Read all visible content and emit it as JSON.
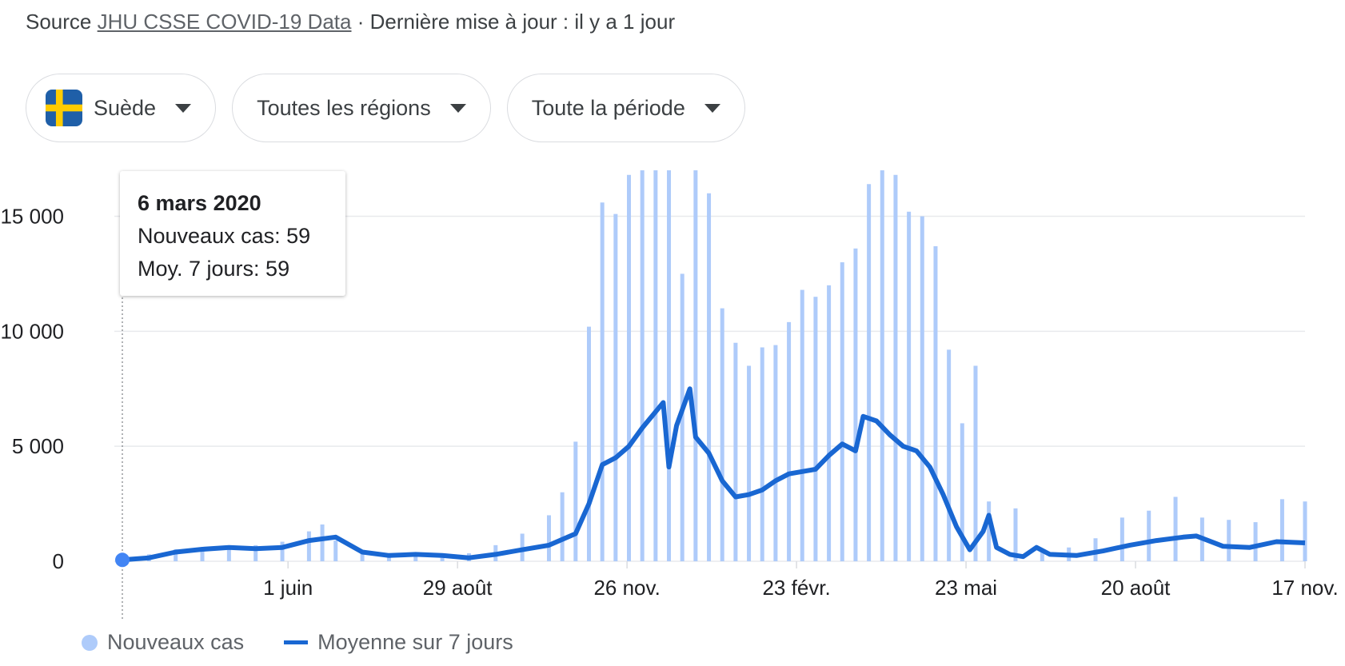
{
  "source": {
    "prefix": "Source",
    "link_text": "JHU CSSE COVID-19 Data",
    "suffix": "· Dernière mise à jour : il y a 1 jour"
  },
  "filters": {
    "country": "Suède",
    "region": "Toutes les régions",
    "period": "Toute la période",
    "flag_icon": "sweden-flag-icon"
  },
  "tooltip": {
    "date": "6 mars 2020",
    "new_cases_line": "Nouveaux cas: 59",
    "avg_line": "Moy. 7 jours: 59"
  },
  "legend": {
    "bars": "Nouveaux cas",
    "line": "Moyenne sur 7 jours"
  },
  "colors": {
    "bar": "#aecbfa",
    "line": "#1967d2",
    "grid": "#e8eaed",
    "marker": "#4285f4"
  },
  "chart_data": {
    "type": "bar",
    "x_range": [
      "2020-03-06",
      "2021-11-17"
    ],
    "ylim": [
      0,
      17000
    ],
    "y_ticks": [
      0,
      5000,
      10000,
      15000
    ],
    "y_tick_labels": [
      "0",
      "5 000",
      "10 000",
      "15 000"
    ],
    "x_ticks": [
      {
        "date": "2020-06-01",
        "label": "1 juin"
      },
      {
        "date": "2020-08-29",
        "label": "29 août"
      },
      {
        "date": "2020-11-26",
        "label": "26 nov."
      },
      {
        "date": "2021-02-23",
        "label": "23 févr."
      },
      {
        "date": "2021-05-23",
        "label": "23 mai"
      },
      {
        "date": "2021-08-20",
        "label": "20 août"
      },
      {
        "date": "2021-11-17",
        "label": "17 nov."
      }
    ],
    "grid": true,
    "legend_position": "bottom-left",
    "highlight": {
      "date": "2020-03-06",
      "new_cases": 59,
      "avg_7d": 59
    },
    "series": [
      {
        "name": "Nouveaux cas",
        "type": "bar",
        "points": [
          [
            "2020-03-06",
            59
          ],
          [
            "2020-03-20",
            300
          ],
          [
            "2020-04-03",
            520
          ],
          [
            "2020-04-17",
            600
          ],
          [
            "2020-05-01",
            650
          ],
          [
            "2020-05-15",
            700
          ],
          [
            "2020-05-29",
            850
          ],
          [
            "2020-06-12",
            1300
          ],
          [
            "2020-06-19",
            1600
          ],
          [
            "2020-06-26",
            900
          ],
          [
            "2020-07-10",
            350
          ],
          [
            "2020-07-24",
            250
          ],
          [
            "2020-08-07",
            300
          ],
          [
            "2020-08-21",
            280
          ],
          [
            "2020-09-04",
            350
          ],
          [
            "2020-09-18",
            700
          ],
          [
            "2020-10-02",
            1200
          ],
          [
            "2020-10-16",
            2000
          ],
          [
            "2020-10-23",
            3000
          ],
          [
            "2020-10-30",
            5200
          ],
          [
            "2020-11-06",
            10200
          ],
          [
            "2020-11-13",
            15600
          ],
          [
            "2020-11-20",
            15100
          ],
          [
            "2020-11-27",
            16800
          ],
          [
            "2020-12-04",
            17000
          ],
          [
            "2020-12-11",
            17000
          ],
          [
            "2020-12-18",
            17000
          ],
          [
            "2020-12-25",
            12500
          ],
          [
            "2021-01-01",
            17000
          ],
          [
            "2021-01-08",
            16000
          ],
          [
            "2021-01-15",
            11000
          ],
          [
            "2021-01-22",
            9500
          ],
          [
            "2021-01-29",
            8500
          ],
          [
            "2021-02-05",
            9300
          ],
          [
            "2021-02-12",
            9400
          ],
          [
            "2021-02-19",
            10400
          ],
          [
            "2021-02-26",
            11800
          ],
          [
            "2021-03-05",
            11500
          ],
          [
            "2021-03-12",
            12000
          ],
          [
            "2021-03-19",
            13000
          ],
          [
            "2021-03-26",
            13600
          ],
          [
            "2021-04-02",
            16400
          ],
          [
            "2021-04-09",
            17000
          ],
          [
            "2021-04-16",
            16800
          ],
          [
            "2021-04-23",
            15200
          ],
          [
            "2021-04-30",
            15000
          ],
          [
            "2021-05-07",
            13700
          ],
          [
            "2021-05-14",
            9200
          ],
          [
            "2021-05-21",
            6000
          ],
          [
            "2021-05-28",
            8500
          ],
          [
            "2021-06-04",
            2600
          ],
          [
            "2021-06-18",
            2300
          ],
          [
            "2021-07-02",
            500
          ],
          [
            "2021-07-16",
            600
          ],
          [
            "2021-07-30",
            1000
          ],
          [
            "2021-08-13",
            1900
          ],
          [
            "2021-08-27",
            2200
          ],
          [
            "2021-09-10",
            2800
          ],
          [
            "2021-09-24",
            1900
          ],
          [
            "2021-10-08",
            1800
          ],
          [
            "2021-10-22",
            1700
          ],
          [
            "2021-11-05",
            2700
          ],
          [
            "2021-11-17",
            2600
          ]
        ]
      },
      {
        "name": "Moyenne sur 7 jours",
        "type": "line",
        "points": [
          [
            "2020-03-06",
            59
          ],
          [
            "2020-03-20",
            150
          ],
          [
            "2020-04-03",
            400
          ],
          [
            "2020-04-17",
            520
          ],
          [
            "2020-05-01",
            600
          ],
          [
            "2020-05-15",
            550
          ],
          [
            "2020-05-29",
            600
          ],
          [
            "2020-06-12",
            900
          ],
          [
            "2020-06-26",
            1050
          ],
          [
            "2020-07-10",
            400
          ],
          [
            "2020-07-24",
            250
          ],
          [
            "2020-08-07",
            300
          ],
          [
            "2020-08-21",
            250
          ],
          [
            "2020-09-04",
            150
          ],
          [
            "2020-09-18",
            300
          ],
          [
            "2020-10-02",
            500
          ],
          [
            "2020-10-16",
            700
          ],
          [
            "2020-10-30",
            1200
          ],
          [
            "2020-11-06",
            2500
          ],
          [
            "2020-11-13",
            4200
          ],
          [
            "2020-11-20",
            4500
          ],
          [
            "2020-11-27",
            5000
          ],
          [
            "2020-12-04",
            5800
          ],
          [
            "2020-12-11",
            6500
          ],
          [
            "2020-12-15",
            6900
          ],
          [
            "2020-12-18",
            4100
          ],
          [
            "2020-12-22",
            5900
          ],
          [
            "2020-12-29",
            7500
          ],
          [
            "2021-01-01",
            5400
          ],
          [
            "2021-01-08",
            4700
          ],
          [
            "2021-01-15",
            3500
          ],
          [
            "2021-01-22",
            2800
          ],
          [
            "2021-01-29",
            2900
          ],
          [
            "2021-02-05",
            3100
          ],
          [
            "2021-02-12",
            3500
          ],
          [
            "2021-02-19",
            3800
          ],
          [
            "2021-02-26",
            3900
          ],
          [
            "2021-03-05",
            4000
          ],
          [
            "2021-03-12",
            4600
          ],
          [
            "2021-03-19",
            5100
          ],
          [
            "2021-03-26",
            4800
          ],
          [
            "2021-03-30",
            6300
          ],
          [
            "2021-04-06",
            6100
          ],
          [
            "2021-04-13",
            5500
          ],
          [
            "2021-04-20",
            5000
          ],
          [
            "2021-04-27",
            4800
          ],
          [
            "2021-05-04",
            4100
          ],
          [
            "2021-05-11",
            2900
          ],
          [
            "2021-05-18",
            1500
          ],
          [
            "2021-05-25",
            500
          ],
          [
            "2021-06-01",
            1300
          ],
          [
            "2021-06-04",
            2000
          ],
          [
            "2021-06-08",
            600
          ],
          [
            "2021-06-15",
            300
          ],
          [
            "2021-06-22",
            200
          ],
          [
            "2021-06-29",
            600
          ],
          [
            "2021-07-06",
            300
          ],
          [
            "2021-07-20",
            250
          ],
          [
            "2021-08-03",
            450
          ],
          [
            "2021-08-17",
            700
          ],
          [
            "2021-08-31",
            900
          ],
          [
            "2021-09-14",
            1050
          ],
          [
            "2021-09-21",
            1100
          ],
          [
            "2021-10-05",
            650
          ],
          [
            "2021-10-19",
            600
          ],
          [
            "2021-11-02",
            850
          ],
          [
            "2021-11-17",
            800
          ]
        ]
      }
    ]
  }
}
